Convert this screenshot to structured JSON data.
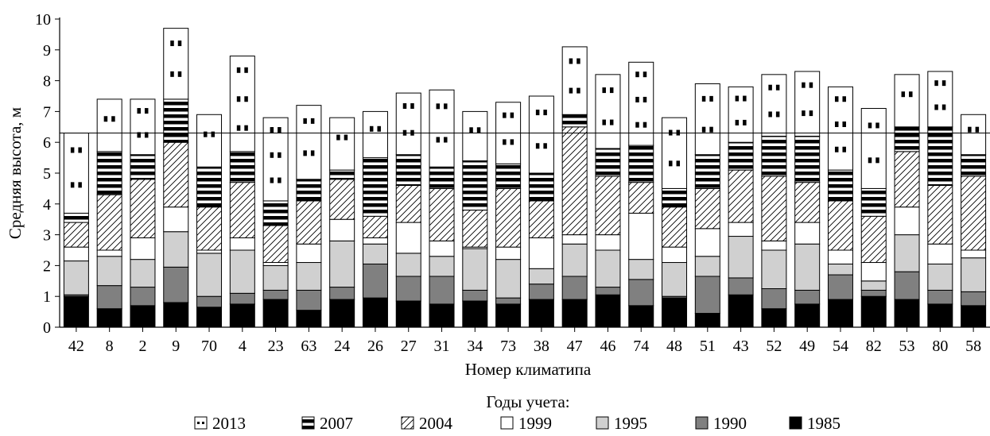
{
  "chart_data": {
    "type": "bar",
    "stacked": true,
    "xlabel": "Номер климатипа",
    "ylabel": "Средняя высота, м",
    "ylim": [
      0,
      10
    ],
    "yticks": [
      0,
      1,
      2,
      3,
      4,
      5,
      6,
      7,
      8,
      9,
      10
    ],
    "reference_line": 6.3,
    "legend_title": "Годы учета:",
    "legend_position": "bottom",
    "categories": [
      "42",
      "8",
      "2",
      "9",
      "70",
      "4",
      "23",
      "63",
      "24",
      "26",
      "27",
      "31",
      "34",
      "73",
      "38",
      "47",
      "46",
      "74",
      "48",
      "51",
      "43",
      "52",
      "49",
      "54",
      "82",
      "53",
      "80",
      "58"
    ],
    "series": [
      {
        "name": "1985",
        "pattern": "solid-black",
        "cumulative": [
          1.0,
          0.6,
          0.7,
          0.8,
          0.65,
          0.75,
          0.9,
          0.55,
          0.9,
          0.95,
          0.85,
          0.75,
          0.85,
          0.75,
          0.9,
          0.9,
          1.05,
          0.7,
          0.95,
          0.45,
          1.05,
          0.6,
          0.75,
          0.9,
          1.0,
          0.9,
          0.75,
          0.7
        ]
      },
      {
        "name": "1990",
        "pattern": "dark-gray",
        "cumulative": [
          1.05,
          1.35,
          1.3,
          1.95,
          1.0,
          1.1,
          1.2,
          1.2,
          1.3,
          2.05,
          1.65,
          1.65,
          1.2,
          0.95,
          1.4,
          1.65,
          1.3,
          1.55,
          1.0,
          1.65,
          1.6,
          1.25,
          1.2,
          1.7,
          1.2,
          1.8,
          1.2,
          1.15
        ]
      },
      {
        "name": "1995",
        "pattern": "light-gray",
        "cumulative": [
          2.15,
          2.3,
          2.2,
          3.1,
          2.4,
          2.5,
          2.0,
          2.1,
          2.8,
          2.7,
          2.4,
          2.3,
          2.55,
          2.2,
          1.9,
          2.7,
          2.5,
          2.2,
          2.1,
          2.3,
          2.95,
          2.5,
          2.7,
          2.05,
          1.5,
          3.0,
          2.05,
          2.25
        ]
      },
      {
        "name": "1999",
        "pattern": "white",
        "cumulative": [
          2.6,
          2.5,
          2.9,
          3.9,
          2.5,
          2.9,
          2.1,
          2.7,
          3.5,
          2.9,
          3.4,
          2.8,
          2.6,
          2.6,
          2.9,
          3.0,
          3.0,
          3.7,
          2.6,
          3.2,
          3.4,
          2.8,
          3.4,
          2.5,
          2.1,
          3.9,
          2.7,
          2.5
        ]
      },
      {
        "name": "2004",
        "pattern": "diagonal",
        "cumulative": [
          3.4,
          4.3,
          4.8,
          6.0,
          3.9,
          4.7,
          3.3,
          4.1,
          4.8,
          3.6,
          4.6,
          4.5,
          3.8,
          4.5,
          4.1,
          6.5,
          4.9,
          4.7,
          3.9,
          4.5,
          5.1,
          4.9,
          4.7,
          4.1,
          3.6,
          5.7,
          4.6,
          4.9
        ]
      },
      {
        "name": "2007",
        "pattern": "horizontal",
        "cumulative": [
          3.7,
          5.7,
          5.6,
          7.4,
          5.2,
          5.7,
          4.1,
          4.8,
          5.1,
          5.5,
          5.6,
          5.2,
          5.4,
          5.3,
          5.0,
          6.9,
          5.8,
          5.9,
          4.5,
          5.6,
          6.0,
          6.2,
          6.2,
          5.1,
          4.5,
          6.5,
          6.5,
          5.6
        ]
      },
      {
        "name": "2013",
        "pattern": "dotted",
        "cumulative": [
          6.3,
          7.4,
          7.4,
          9.7,
          6.9,
          8.8,
          6.8,
          7.2,
          6.8,
          7.0,
          7.6,
          7.7,
          7.0,
          7.3,
          7.5,
          9.1,
          8.2,
          8.6,
          6.8,
          7.9,
          7.8,
          8.2,
          8.3,
          7.8,
          7.1,
          8.2,
          8.3,
          6.9
        ]
      }
    ]
  }
}
